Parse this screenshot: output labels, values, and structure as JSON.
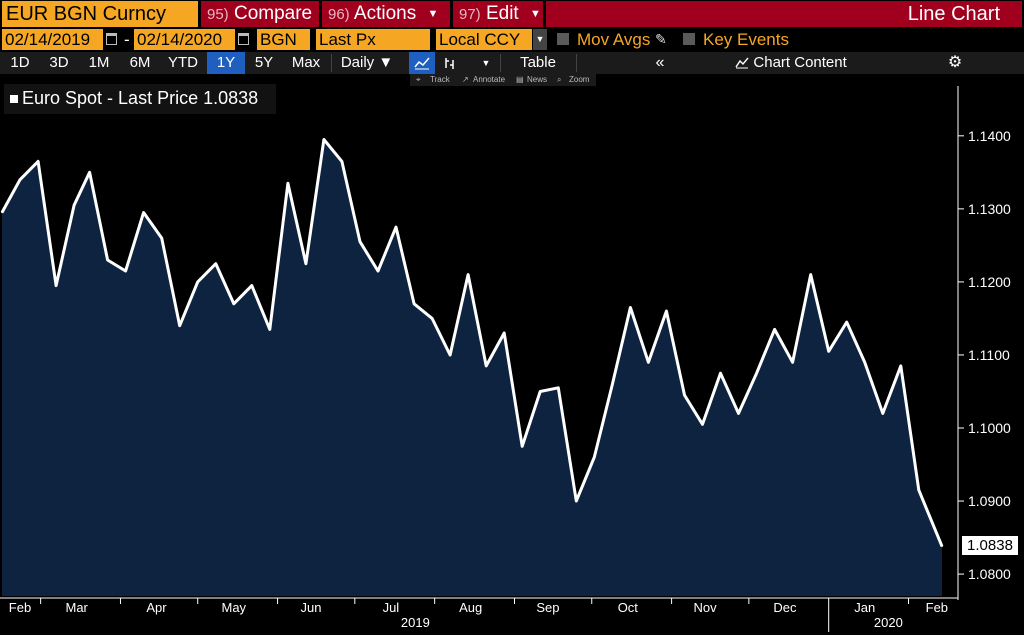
{
  "toolbar": {
    "ticker": "EUR BGN Curncy",
    "compare": {
      "num": "95)",
      "label": "Compare"
    },
    "actions": {
      "num": "96)",
      "label": "Actions"
    },
    "edit": {
      "num": "97)",
      "label": "Edit"
    },
    "chart_type": "Line Chart"
  },
  "params": {
    "start_date": "02/14/2019",
    "end_date": "02/14/2020",
    "pricing_source": "BGN",
    "field": "Last Px",
    "currency": "Local CCY",
    "mov_avgs": "Mov Avgs",
    "key_events": "Key Events"
  },
  "periods": [
    "1D",
    "3D",
    "1M",
    "6M",
    "YTD",
    "1Y",
    "5Y",
    "Max"
  ],
  "active_period": "1Y",
  "frequency": "Daily",
  "toolbar2": {
    "table": "Table",
    "chart_content": "Chart Content",
    "track": "Track",
    "annotate": "Annotate",
    "news": "News",
    "zoom": "Zoom"
  },
  "legend": {
    "label": "Euro Spot - Last Price",
    "value": "1.0838"
  },
  "colors": {
    "accent_orange": "#f5a623",
    "button_red": "#a0001e",
    "active_blue": "#1f5fbf",
    "chart_fill": "#0d2340",
    "line": "#ffffff"
  },
  "chart_data": {
    "type": "area",
    "series": [
      {
        "name": "Euro Spot - Last Price",
        "x": [
          "2019-02-14",
          "2019-02-21",
          "2019-02-28",
          "2019-03-07",
          "2019-03-14",
          "2019-03-20",
          "2019-03-27",
          "2019-04-03",
          "2019-04-10",
          "2019-04-17",
          "2019-04-24",
          "2019-05-01",
          "2019-05-08",
          "2019-05-15",
          "2019-05-22",
          "2019-05-29",
          "2019-06-05",
          "2019-06-12",
          "2019-06-19",
          "2019-06-26",
          "2019-07-03",
          "2019-07-10",
          "2019-07-17",
          "2019-07-24",
          "2019-07-31",
          "2019-08-07",
          "2019-08-14",
          "2019-08-21",
          "2019-08-28",
          "2019-09-04",
          "2019-09-11",
          "2019-09-18",
          "2019-09-25",
          "2019-10-02",
          "2019-10-09",
          "2019-10-16",
          "2019-10-23",
          "2019-10-30",
          "2019-11-06",
          "2019-11-13",
          "2019-11-20",
          "2019-11-27",
          "2019-12-04",
          "2019-12-11",
          "2019-12-18",
          "2019-12-25",
          "2020-01-01",
          "2020-01-08",
          "2020-01-15",
          "2020-01-22",
          "2020-01-29",
          "2020-02-05",
          "2020-02-14"
        ],
        "values": [
          1.1295,
          1.134,
          1.1365,
          1.1195,
          1.1305,
          1.135,
          1.123,
          1.1215,
          1.1295,
          1.126,
          1.114,
          1.12,
          1.1225,
          1.117,
          1.1195,
          1.1135,
          1.1335,
          1.1225,
          1.1395,
          1.1365,
          1.1255,
          1.1215,
          1.1275,
          1.117,
          1.115,
          1.11,
          1.121,
          1.1085,
          1.113,
          1.0975,
          1.105,
          1.1055,
          1.09,
          1.096,
          1.106,
          1.1165,
          1.109,
          1.116,
          1.1045,
          1.1005,
          1.1075,
          1.102,
          1.1075,
          1.1135,
          1.109,
          1.121,
          1.1105,
          1.1145,
          1.109,
          1.102,
          1.1085,
          1.0915,
          1.0838
        ]
      }
    ],
    "y_ticks": [
      "1.1400",
      "1.1300",
      "1.1200",
      "1.1100",
      "1.1000",
      "1.0900",
      "1.0800"
    ],
    "ylim": [
      1.077,
      1.146
    ],
    "x_month_labels": [
      "Feb",
      "Mar",
      "Apr",
      "May",
      "Jun",
      "Jul",
      "Aug",
      "Sep",
      "Oct",
      "Nov",
      "Dec",
      "Jan",
      "Feb"
    ],
    "x_year_labels": [
      "2019",
      "2020"
    ],
    "last_value": "1.0838",
    "grid": false
  }
}
